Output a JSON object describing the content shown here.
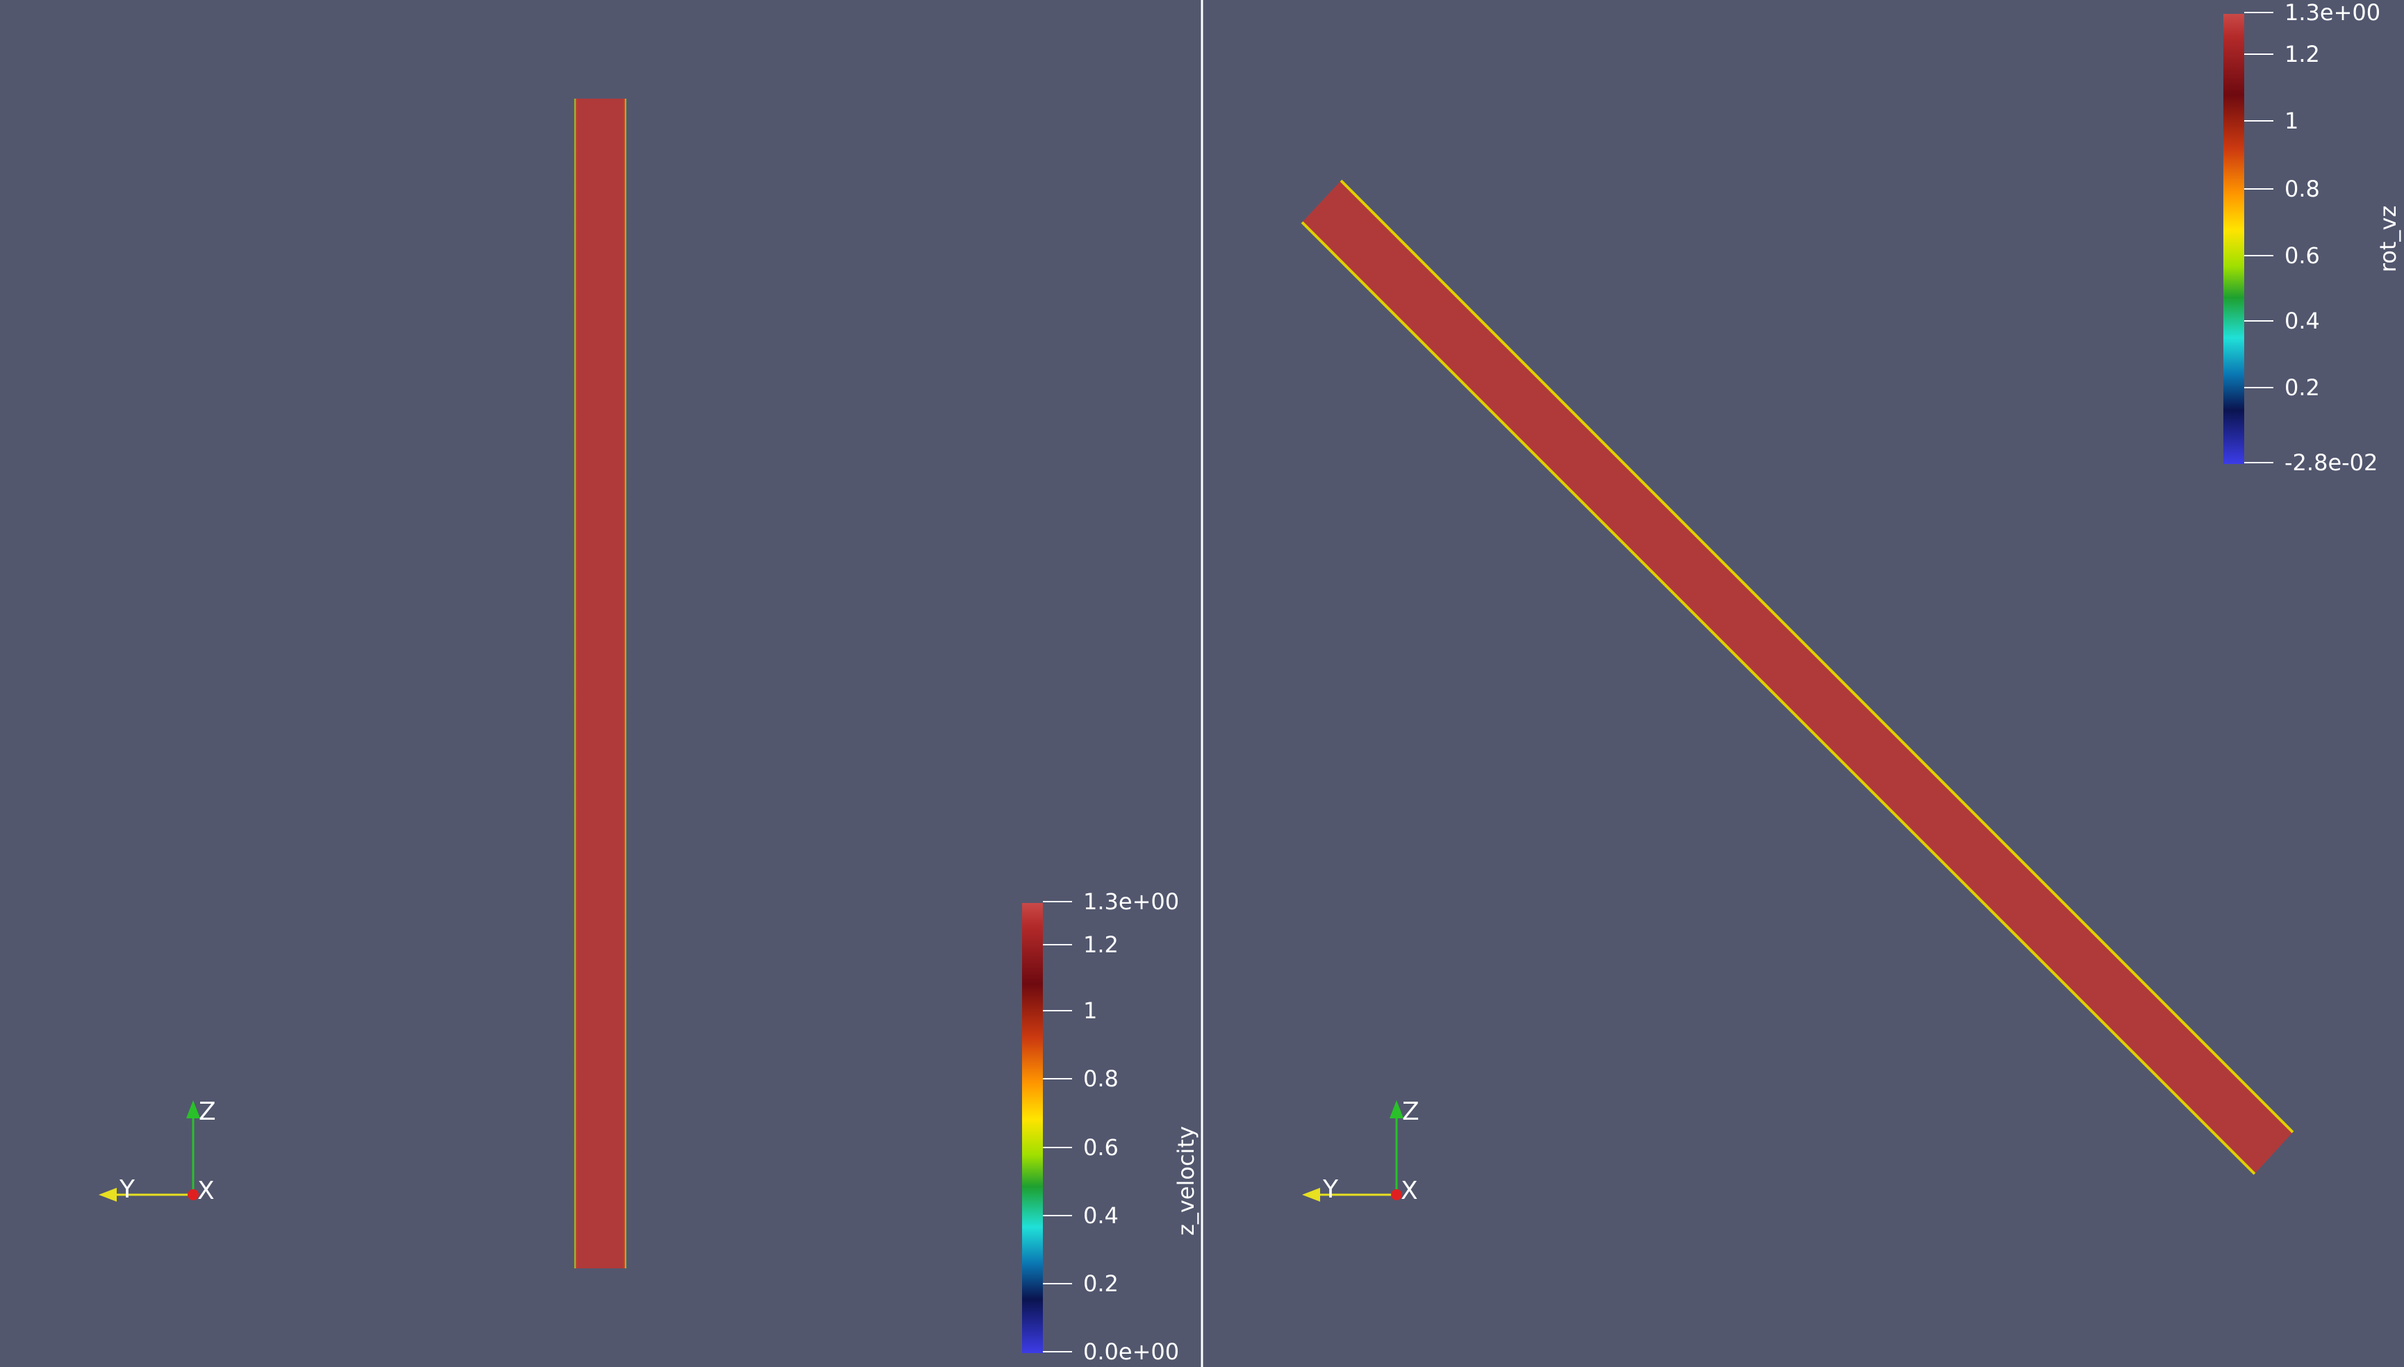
{
  "views": {
    "left": {
      "colorbar": {
        "title": "z_velocity",
        "tick_labels": [
          "1.3e+00",
          "1.2",
          "1",
          "0.8",
          "0.6",
          "0.4",
          "0.2",
          "0.0e+00"
        ]
      },
      "orientation_axes": {
        "labels": [
          "Z",
          "Y",
          "X"
        ]
      }
    },
    "right": {
      "colorbar": {
        "title": "rot_vz",
        "tick_labels": [
          "1.3e+00",
          "1.2",
          "1",
          "0.8",
          "0.6",
          "0.4",
          "0.2",
          "-2.8e-02"
        ]
      },
      "orientation_axes": {
        "labels": [
          "Z",
          "Y",
          "X"
        ]
      }
    }
  },
  "colors": {
    "background": "#52576e",
    "object_fill": "#b03a3a",
    "divider": "#ffffff"
  }
}
